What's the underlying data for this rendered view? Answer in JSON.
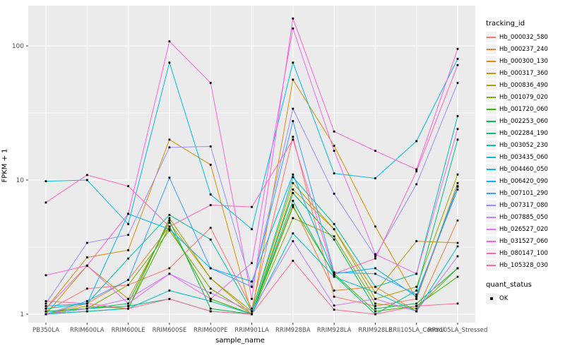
{
  "chart_data": {
    "type": "line",
    "title": "",
    "xlabel": "sample_name",
    "ylabel": "FPKM + 1",
    "y_scale": "log10",
    "y_ticks": [
      1,
      10,
      100
    ],
    "y_minor": [
      3.162,
      31.62
    ],
    "ylim": [
      0.87,
      200
    ],
    "grid": true,
    "panel_bg": "#EBEBEB",
    "grid_color": "#FFFFFF",
    "point_color": "#000000",
    "axis_text_color": "#4D4D4D",
    "categories": [
      "PB350LA",
      "RRIM600LA",
      "RRIM600LE",
      "RRIM600SE",
      "RRIM600PE",
      "RRIM901LA",
      "RRIM928BA",
      "RRIM928LA",
      "RRIM928LE",
      "RRII105LA_Control",
      "RRII105LA_Stressed"
    ],
    "legend": {
      "title": "tracking_id",
      "position": "right"
    },
    "legend2": {
      "title": "quant_status",
      "items": [
        {
          "label": "OK",
          "marker": "black-square"
        }
      ]
    },
    "series": [
      {
        "name": "Hb_000032_580",
        "color": "#F8766D",
        "values": [
          1.05,
          1.55,
          1.65,
          2.2,
          4.4,
          1.1,
          21,
          1.35,
          1.15,
          1.3,
          8.9
        ]
      },
      {
        "name": "Hb_000237_240",
        "color": "#EA8331",
        "values": [
          1.0,
          1.2,
          1.8,
          4.5,
          1.3,
          1.0,
          6.5,
          1.5,
          1.6,
          1.05,
          5.0
        ]
      },
      {
        "name": "Hb_000300_130",
        "color": "#D89000",
        "values": [
          1.1,
          2.65,
          3.0,
          20,
          13,
          1.0,
          56,
          18,
          4.5,
          1.3,
          9.5
        ]
      },
      {
        "name": "Hb_000317_360",
        "color": "#C09B00",
        "values": [
          1.0,
          2.3,
          1.3,
          4.8,
          1.85,
          1.0,
          8.5,
          4.3,
          1.45,
          3.5,
          3.4
        ]
      },
      {
        "name": "Hb_000836_490",
        "color": "#A3A500",
        "values": [
          1.0,
          1.15,
          1.1,
          5.2,
          1.85,
          1.05,
          9.5,
          4.3,
          1.3,
          1.6,
          11
        ]
      },
      {
        "name": "Hb_001079_020",
        "color": "#7CAE00",
        "values": [
          1.0,
          1.1,
          1.65,
          4.2,
          1.55,
          1.0,
          5.2,
          3.8,
          1.2,
          1.1,
          2.2
        ]
      },
      {
        "name": "Hb_001720_060",
        "color": "#39B600",
        "values": [
          1.0,
          1.05,
          1.1,
          4.5,
          1.3,
          1.0,
          6.3,
          2.0,
          1.05,
          1.15,
          1.9
        ]
      },
      {
        "name": "Hb_002253_060",
        "color": "#00BB4E",
        "values": [
          1.05,
          1.1,
          1.2,
          5.0,
          1.1,
          1.0,
          8.0,
          3.6,
          1.1,
          1.2,
          2.2
        ]
      },
      {
        "name": "Hb_002284_190",
        "color": "#00BF7D",
        "values": [
          1.0,
          1.1,
          1.15,
          1.3,
          1.05,
          1.0,
          7.0,
          1.95,
          1.0,
          1.5,
          20
        ]
      },
      {
        "name": "Hb_003052_230",
        "color": "#00C1A3",
        "values": [
          1.1,
          1.2,
          2.6,
          5.5,
          3.6,
          1.05,
          10.5,
          4.7,
          1.6,
          2.0,
          30
        ]
      },
      {
        "name": "Hb_003435_060",
        "color": "#00BFC4",
        "values": [
          1.0,
          1.05,
          1.1,
          1.5,
          1.25,
          1.0,
          4.0,
          1.9,
          1.45,
          1.05,
          3.2
        ]
      },
      {
        "name": "Hb_004460_050",
        "color": "#00BAE0",
        "values": [
          9.8,
          10.0,
          4.7,
          75,
          7.8,
          4.3,
          75,
          11.2,
          10.3,
          19.5,
          80
        ]
      },
      {
        "name": "Hb_006420_090",
        "color": "#00B0F6",
        "values": [
          1.15,
          1.2,
          5.6,
          4.3,
          2.2,
          1.75,
          11,
          2.0,
          2.2,
          1.35,
          9
        ]
      },
      {
        "name": "Hb_007101_290",
        "color": "#35A2FF",
        "values": [
          1.0,
          1.25,
          1.8,
          10.4,
          2.2,
          1.6,
          27.5,
          2.05,
          2.0,
          1.4,
          8.5
        ]
      },
      {
        "name": "Hb_007317_080",
        "color": "#9590FF",
        "values": [
          1.2,
          3.4,
          3.9,
          17.5,
          17.8,
          1.6,
          34,
          7.9,
          2.7,
          9.3,
          53
        ]
      },
      {
        "name": "Hb_007885_050",
        "color": "#C77CFF",
        "values": [
          1.0,
          1.1,
          1.3,
          2.0,
          1.44,
          1.05,
          3.5,
          1.16,
          1.3,
          1.05,
          2.7
        ]
      },
      {
        "name": "Hb_026527_020",
        "color": "#E76BF3",
        "values": [
          1.1,
          2.3,
          1.2,
          2.0,
          1.3,
          2.4,
          135,
          16.5,
          2.8,
          2.0,
          24
        ]
      },
      {
        "name": "Hb_031527_060",
        "color": "#FA62DB",
        "values": [
          1.95,
          2.3,
          5.6,
          108,
          53,
          1.3,
          160,
          23,
          16.5,
          12,
          95
        ]
      },
      {
        "name": "Hb_080147_100",
        "color": "#FF62BC",
        "values": [
          6.8,
          10.9,
          9.0,
          4.5,
          6.5,
          6.3,
          20,
          2.0,
          2.6,
          11.6,
          72
        ]
      },
      {
        "name": "Hb_105328_030",
        "color": "#FF6A98",
        "values": [
          1.25,
          1.2,
          1.1,
          1.3,
          1.05,
          1.0,
          2.5,
          1.08,
          1.0,
          1.15,
          1.2
        ]
      }
    ]
  }
}
